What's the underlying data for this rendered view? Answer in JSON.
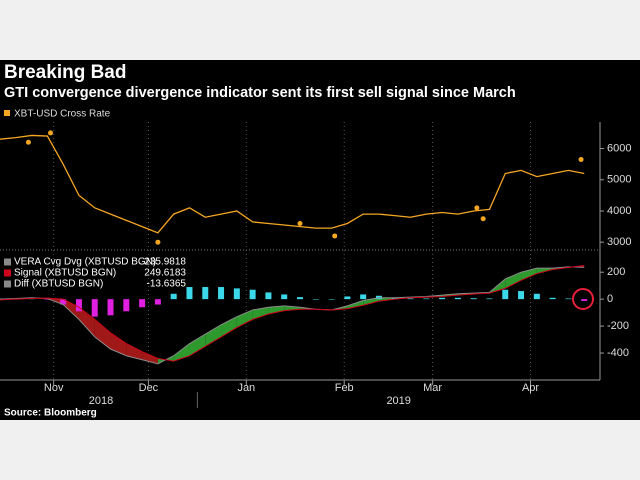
{
  "chart_data": {
    "type": "line",
    "title": "Breaking Bad",
    "subtitle": "GTI convergence divergence indicator sent its first sell signal since March",
    "source": "Source: Bloomberg",
    "x": [
      0,
      5,
      10,
      15,
      20,
      25,
      30,
      35,
      40,
      45,
      50,
      55,
      60,
      65,
      70,
      75,
      80,
      85,
      90,
      95,
      100,
      105,
      110,
      115,
      120,
      125,
      130,
      135,
      140,
      145,
      150,
      155,
      160,
      165,
      170,
      175,
      180,
      185
    ],
    "xlim": [
      0,
      190
    ],
    "xticks": [
      {
        "value": 17,
        "label": "Nov"
      },
      {
        "value": 47,
        "label": "Dec"
      },
      {
        "value": 78,
        "label": "Jan"
      },
      {
        "value": 109,
        "label": "Feb"
      },
      {
        "value": 137,
        "label": "Mar"
      },
      {
        "value": 168,
        "label": "Apr"
      }
    ],
    "year_labels": [
      "2018",
      "2019"
    ],
    "price": {
      "name": "XBT-USD Cross Rate",
      "color": "#f5a623",
      "values": [
        6300,
        6350,
        6420,
        6400,
        5500,
        4500,
        4100,
        3900,
        3700,
        3500,
        3300,
        3900,
        4100,
        3800,
        3900,
        4000,
        3650,
        3600,
        3550,
        3500,
        3450,
        3450,
        3600,
        3900,
        3900,
        3850,
        3800,
        3900,
        3950,
        3900,
        4000,
        4050,
        5200,
        5300,
        5100,
        5200,
        5300,
        5200
      ],
      "highlights": {
        "x": [
          9,
          16,
          50,
          95,
          106,
          151,
          153,
          184
        ],
        "values": [
          6200,
          6500,
          3000,
          3600,
          3200,
          4100,
          3750,
          5650
        ]
      },
      "ylim": [
        2750,
        6850
      ],
      "yticks": [
        3000,
        4000,
        5000,
        6000
      ]
    },
    "indicator": {
      "ylim": [
        -600,
        350
      ],
      "yticks": [
        200,
        0,
        -200,
        -400
      ],
      "series": [
        {
          "name": "VERA Cvg Dvg (XBTUSD BGN)",
          "color": "#8a8a8a",
          "values": [
            0,
            5,
            10,
            5,
            -40,
            -150,
            -280,
            -370,
            -420,
            -450,
            -480,
            -420,
            -330,
            -260,
            -190,
            -130,
            -80,
            -60,
            -50,
            -60,
            -75,
            -80,
            -50,
            -10,
            10,
            10,
            15,
            20,
            30,
            40,
            45,
            50,
            150,
            200,
            230,
            230,
            240,
            235.9818
          ]
        },
        {
          "name": "Signal (XBTUSD BGN)",
          "color": "#d0021b",
          "values": [
            -5,
            0,
            5,
            8,
            0,
            -60,
            -150,
            -250,
            -330,
            -390,
            -440,
            -460,
            -420,
            -350,
            -280,
            -210,
            -150,
            -110,
            -85,
            -75,
            -75,
            -80,
            -70,
            -45,
            -15,
            0,
            10,
            15,
            20,
            30,
            38,
            45,
            80,
            140,
            190,
            220,
            235,
            249.6183
          ]
        },
        {
          "name": "Diff (XBTUSD BGN)",
          "color": "#888888",
          "positive_color": "#3ad8e8",
          "negative_color": "#e020e0",
          "values": [
            5,
            5,
            5,
            -3,
            -40,
            -90,
            -130,
            -120,
            -90,
            -60,
            -40,
            40,
            90,
            90,
            90,
            80,
            70,
            50,
            35,
            15,
            0,
            0,
            20,
            35,
            25,
            10,
            5,
            5,
            10,
            10,
            7,
            5,
            70,
            60,
            40,
            10,
            5,
            -13.6365
          ]
        }
      ]
    }
  }
}
